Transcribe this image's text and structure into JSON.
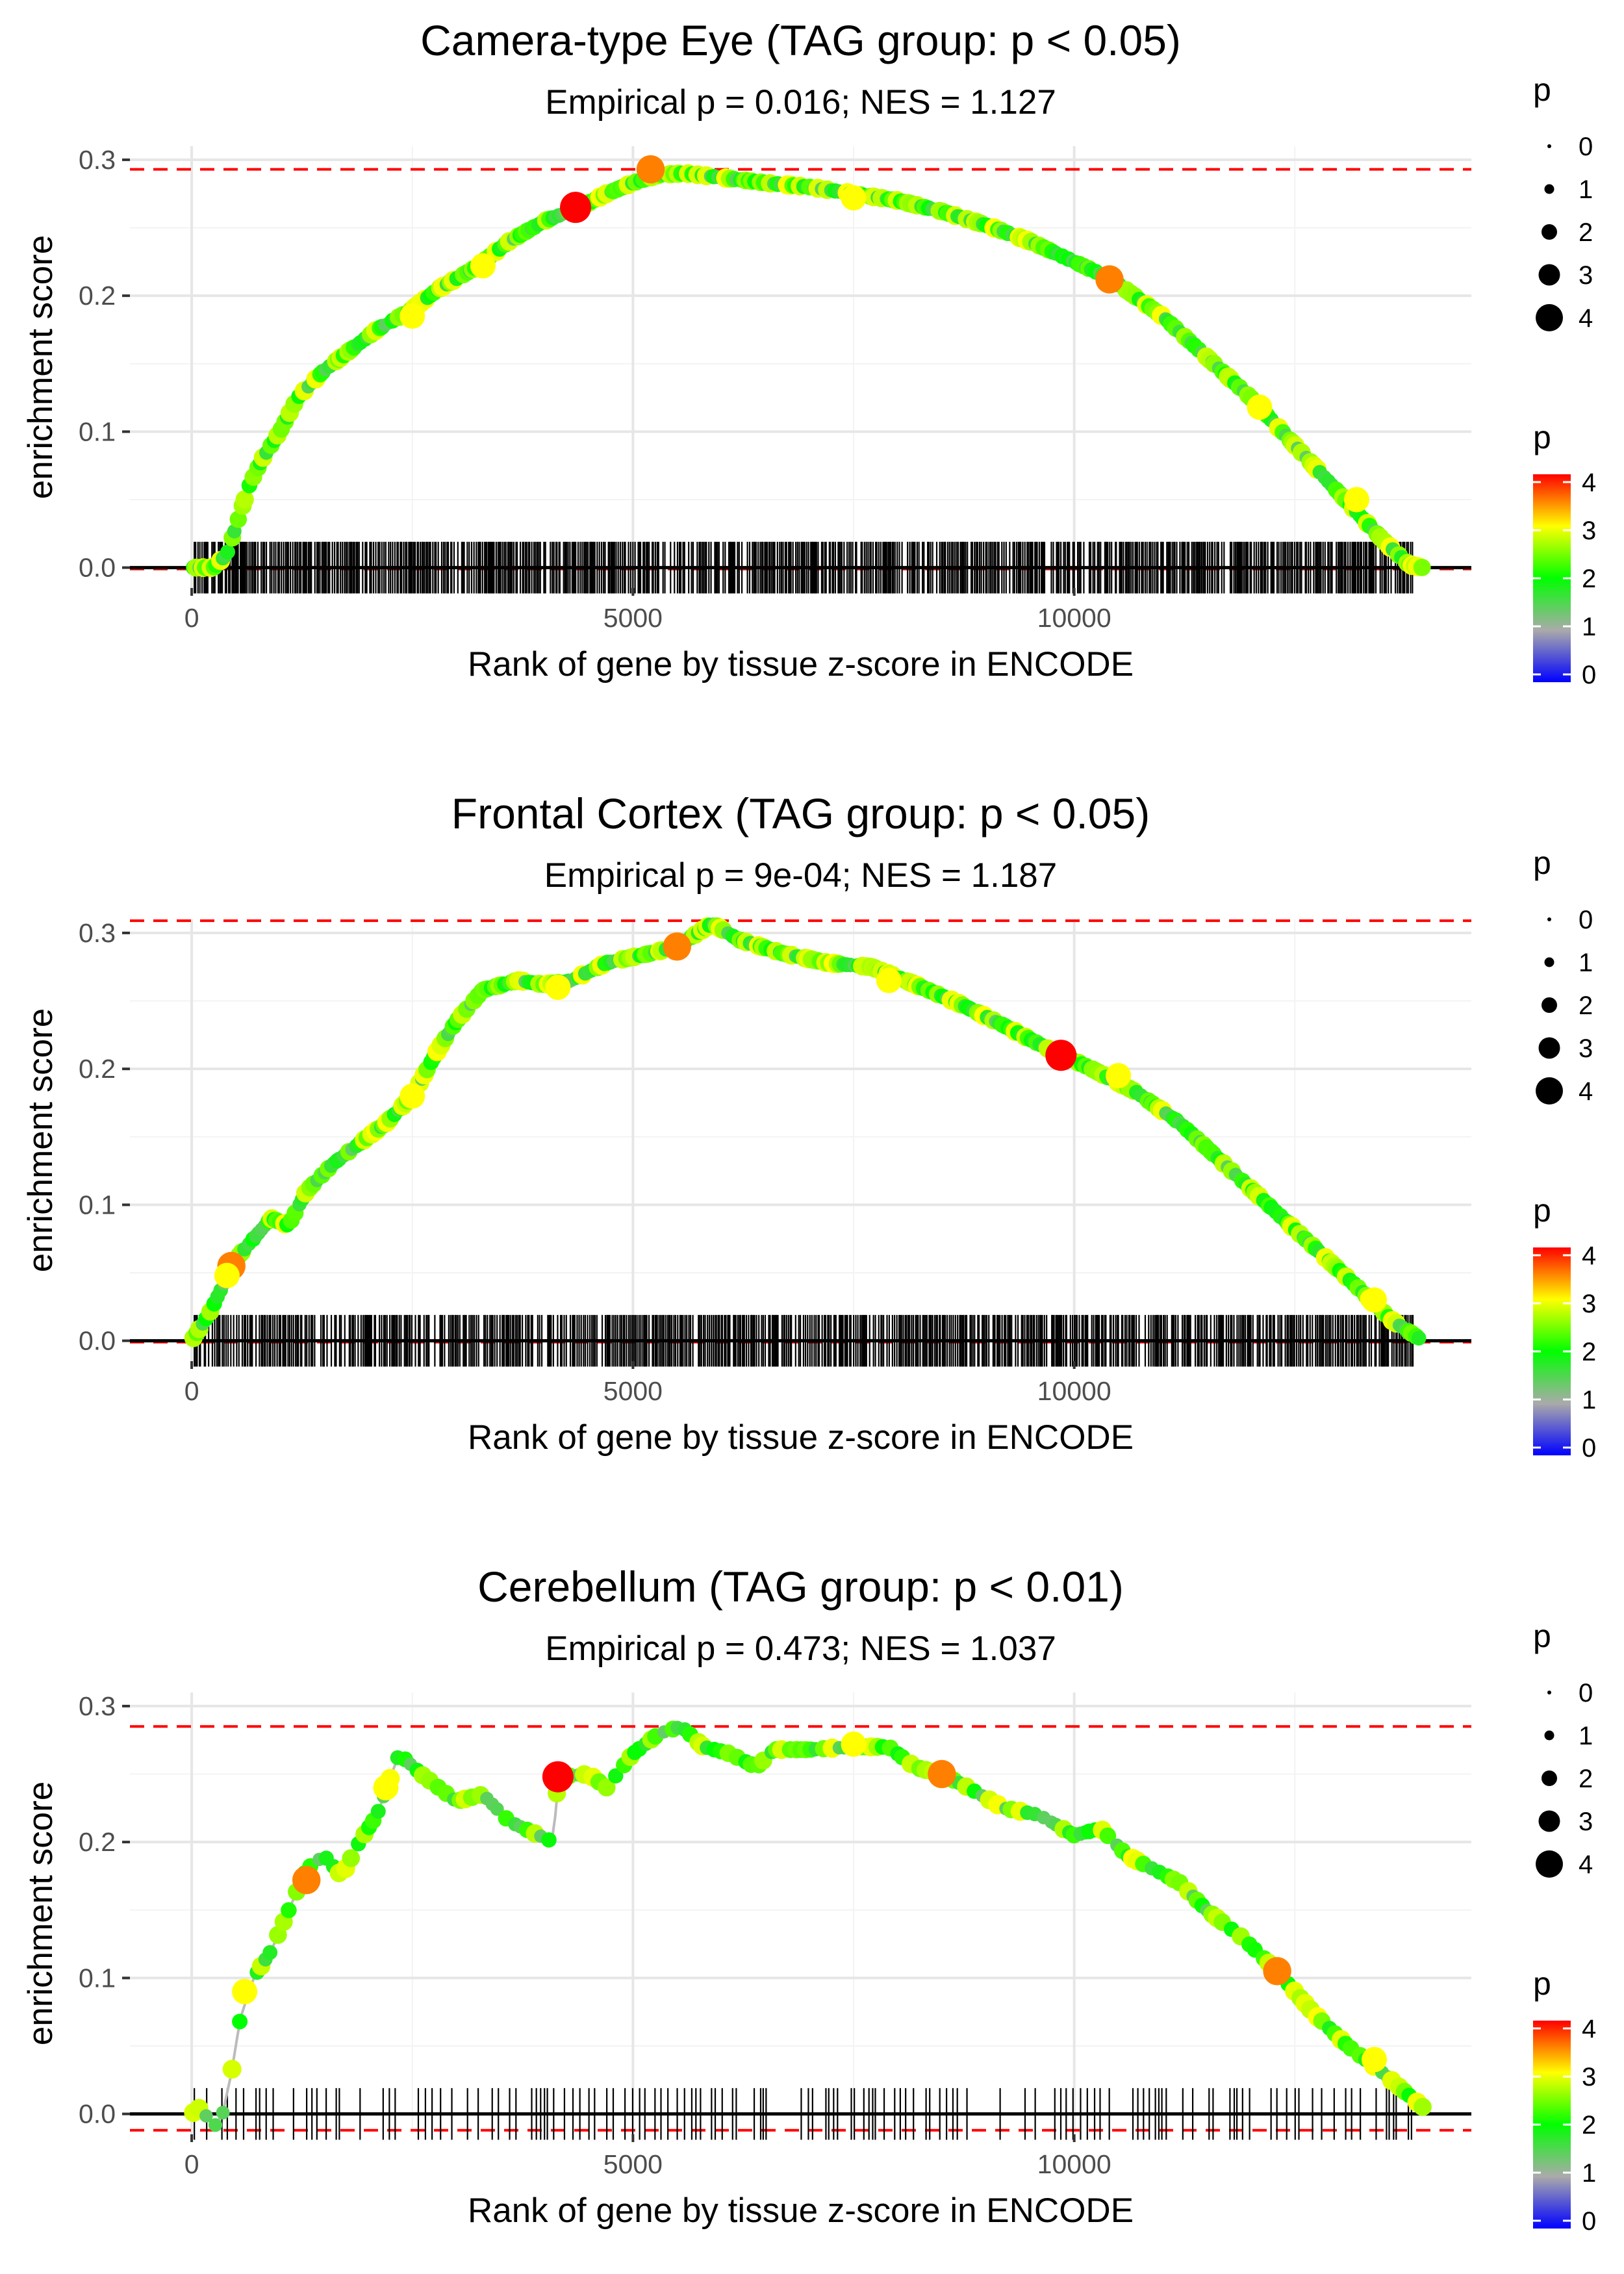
{
  "chart_data": [
    {
      "type": "scatter",
      "title": "Camera-type Eye (TAG group: p < 0.05)",
      "subtitle": "Empirical p = 0.016; NES = 1.127",
      "xlabel": "Rank of gene by tissue z-score in ENCODE",
      "ylabel": "enrichment score",
      "xlim": [
        -700,
        14500
      ],
      "ylim": [
        -0.015,
        0.31
      ],
      "x_ticks": [
        0,
        5000,
        10000
      ],
      "x_tick_labels": [
        "0",
        "5000",
        "10000"
      ],
      "y_ticks": [
        0.0,
        0.1,
        0.2,
        0.3
      ],
      "y_tick_labels": [
        "0.0",
        "0.1",
        "0.2",
        "0.3"
      ],
      "max_es_line": 0.293,
      "min_es_line": -0.001,
      "n_genes": 13950,
      "density": "dense",
      "curve_knots": [
        [
          0,
          0
        ],
        [
          250,
          0
        ],
        [
          400,
          0.01
        ],
        [
          500,
          0.03
        ],
        [
          650,
          0.06
        ],
        [
          800,
          0.08
        ],
        [
          1000,
          0.1
        ],
        [
          1200,
          0.125
        ],
        [
          1500,
          0.145
        ],
        [
          1800,
          0.16
        ],
        [
          2100,
          0.175
        ],
        [
          2500,
          0.19
        ],
        [
          2800,
          0.205
        ],
        [
          3200,
          0.22
        ],
        [
          3600,
          0.24
        ],
        [
          4000,
          0.255
        ],
        [
          4400,
          0.265
        ],
        [
          4700,
          0.275
        ],
        [
          5000,
          0.283
        ],
        [
          5300,
          0.289
        ],
        [
          5600,
          0.29
        ],
        [
          6000,
          0.287
        ],
        [
          6500,
          0.283
        ],
        [
          7000,
          0.28
        ],
        [
          7500,
          0.275
        ],
        [
          8000,
          0.27
        ],
        [
          8500,
          0.262
        ],
        [
          9000,
          0.252
        ],
        [
          9500,
          0.24
        ],
        [
          10000,
          0.225
        ],
        [
          10400,
          0.213
        ],
        [
          11000,
          0.185
        ],
        [
          11500,
          0.155
        ],
        [
          12000,
          0.125
        ],
        [
          12500,
          0.09
        ],
        [
          13000,
          0.055
        ],
        [
          13500,
          0.02
        ],
        [
          13800,
          0.002
        ],
        [
          13950,
          0.0
        ]
      ],
      "highlight_points": [
        {
          "x": 4350,
          "y": 0.265,
          "p": 4
        },
        {
          "x": 5200,
          "y": 0.293,
          "p": 3.5
        },
        {
          "x": 10400,
          "y": 0.212,
          "p": 3.5
        },
        {
          "x": 2500,
          "y": 0.185,
          "p": 3
        },
        {
          "x": 3300,
          "y": 0.222,
          "p": 3
        },
        {
          "x": 7500,
          "y": 0.272,
          "p": 3
        },
        {
          "x": 12100,
          "y": 0.118,
          "p": 3
        },
        {
          "x": 13200,
          "y": 0.05,
          "p": 3
        }
      ],
      "size_legend": {
        "title": "p",
        "labels": [
          "0",
          "1",
          "2",
          "3",
          "4"
        ]
      },
      "color_legend": {
        "title": "p",
        "labels": [
          "4",
          "3",
          "2",
          "1",
          "0"
        ],
        "colors": [
          "#0000ff",
          "#aaaaaa",
          "#00ff00",
          "#ffff00",
          "#ff0000"
        ]
      }
    },
    {
      "type": "scatter",
      "title": "Frontal Cortex (TAG group: p < 0.05)",
      "subtitle": "Empirical p = 9e-04; NES = 1.187",
      "xlabel": "Rank of gene by tissue z-score in ENCODE",
      "ylabel": "enrichment score",
      "xlim": [
        -700,
        14500
      ],
      "ylim": [
        -0.015,
        0.31
      ],
      "x_ticks": [
        0,
        5000,
        10000
      ],
      "x_tick_labels": [
        "0",
        "5000",
        "10000"
      ],
      "y_ticks": [
        0.0,
        0.1,
        0.2,
        0.3
      ],
      "y_tick_labels": [
        "0.0",
        "0.1",
        "0.2",
        "0.3"
      ],
      "max_es_line": 0.309,
      "min_es_line": -0.001,
      "n_genes": 13950,
      "density": "dense",
      "curve_knots": [
        [
          0,
          0
        ],
        [
          200,
          0.02
        ],
        [
          350,
          0.04
        ],
        [
          500,
          0.06
        ],
        [
          700,
          0.075
        ],
        [
          900,
          0.09
        ],
        [
          1100,
          0.085
        ],
        [
          1300,
          0.11
        ],
        [
          1600,
          0.13
        ],
        [
          1900,
          0.145
        ],
        [
          2200,
          0.16
        ],
        [
          2500,
          0.18
        ],
        [
          2800,
          0.215
        ],
        [
          3000,
          0.235
        ],
        [
          3300,
          0.258
        ],
        [
          3700,
          0.265
        ],
        [
          4000,
          0.262
        ],
        [
          4300,
          0.265
        ],
        [
          4700,
          0.278
        ],
        [
          5200,
          0.285
        ],
        [
          5500,
          0.29
        ],
        [
          5900,
          0.307
        ],
        [
          6200,
          0.295
        ],
        [
          6700,
          0.285
        ],
        [
          7200,
          0.278
        ],
        [
          7700,
          0.275
        ],
        [
          8200,
          0.262
        ],
        [
          8700,
          0.248
        ],
        [
          9200,
          0.232
        ],
        [
          9700,
          0.215
        ],
        [
          10200,
          0.2
        ],
        [
          10700,
          0.183
        ],
        [
          11200,
          0.16
        ],
        [
          11700,
          0.13
        ],
        [
          12200,
          0.1
        ],
        [
          12700,
          0.07
        ],
        [
          13200,
          0.04
        ],
        [
          13600,
          0.015
        ],
        [
          13950,
          0.0
        ]
      ],
      "highlight_points": [
        {
          "x": 9850,
          "y": 0.21,
          "p": 4
        },
        {
          "x": 5500,
          "y": 0.29,
          "p": 3.5
        },
        {
          "x": 450,
          "y": 0.055,
          "p": 3.5
        },
        {
          "x": 400,
          "y": 0.048,
          "p": 3
        },
        {
          "x": 4150,
          "y": 0.26,
          "p": 3
        },
        {
          "x": 2500,
          "y": 0.18,
          "p": 3
        },
        {
          "x": 7900,
          "y": 0.265,
          "p": 3
        },
        {
          "x": 10500,
          "y": 0.195,
          "p": 3
        },
        {
          "x": 13400,
          "y": 0.03,
          "p": 3
        }
      ],
      "size_legend": {
        "title": "p",
        "labels": [
          "0",
          "1",
          "2",
          "3",
          "4"
        ]
      },
      "color_legend": {
        "title": "p",
        "labels": [
          "4",
          "3",
          "2",
          "1",
          "0"
        ],
        "colors": [
          "#0000ff",
          "#aaaaaa",
          "#00ff00",
          "#ffff00",
          "#ff0000"
        ]
      }
    },
    {
      "type": "scatter",
      "title": "Cerebellum (TAG group: p < 0.01)",
      "subtitle": "Empirical p = 0.473; NES = 1.037",
      "xlabel": "Rank of gene by tissue z-score in ENCODE",
      "ylabel": "enrichment score",
      "xlim": [
        -700,
        14500
      ],
      "ylim": [
        -0.015,
        0.31
      ],
      "x_ticks": [
        0,
        5000,
        10000
      ],
      "x_tick_labels": [
        "0",
        "5000",
        "10000"
      ],
      "y_ticks": [
        0.0,
        0.1,
        0.2,
        0.3
      ],
      "y_tick_labels": [
        "0.0",
        "0.1",
        "0.2",
        "0.3"
      ],
      "max_es_line": 0.285,
      "min_es_line": -0.012,
      "n_genes": 13950,
      "density": "sparse",
      "curve_knots": [
        [
          0,
          0
        ],
        [
          100,
          0.005
        ],
        [
          250,
          -0.01
        ],
        [
          350,
          0
        ],
        [
          450,
          0.03
        ],
        [
          550,
          0.07
        ],
        [
          700,
          0.1
        ],
        [
          900,
          0.12
        ],
        [
          1100,
          0.15
        ],
        [
          1300,
          0.18
        ],
        [
          1500,
          0.19
        ],
        [
          1700,
          0.175
        ],
        [
          1900,
          0.2
        ],
        [
          2100,
          0.22
        ],
        [
          2350,
          0.265
        ],
        [
          2600,
          0.25
        ],
        [
          3000,
          0.23
        ],
        [
          3300,
          0.235
        ],
        [
          3600,
          0.215
        ],
        [
          4100,
          0.2
        ],
        [
          4150,
          0.248
        ],
        [
          4500,
          0.25
        ],
        [
          4700,
          0.24
        ],
        [
          5000,
          0.265
        ],
        [
          5300,
          0.28
        ],
        [
          5550,
          0.285
        ],
        [
          5800,
          0.27
        ],
        [
          6100,
          0.265
        ],
        [
          6400,
          0.255
        ],
        [
          6600,
          0.268
        ],
        [
          7000,
          0.268
        ],
        [
          7500,
          0.27
        ],
        [
          7900,
          0.27
        ],
        [
          8200,
          0.255
        ],
        [
          8500,
          0.25
        ],
        [
          8800,
          0.24
        ],
        [
          9200,
          0.225
        ],
        [
          9600,
          0.22
        ],
        [
          10000,
          0.205
        ],
        [
          10300,
          0.21
        ],
        [
          10600,
          0.19
        ],
        [
          10900,
          0.18
        ],
        [
          11200,
          0.17
        ],
        [
          11500,
          0.15
        ],
        [
          11900,
          0.13
        ],
        [
          12300,
          0.105
        ],
        [
          12700,
          0.075
        ],
        [
          13100,
          0.05
        ],
        [
          13500,
          0.03
        ],
        [
          13950,
          0.005
        ]
      ],
      "highlight_points": [
        {
          "x": 4150,
          "y": 0.248,
          "p": 4
        },
        {
          "x": 8500,
          "y": 0.25,
          "p": 3.5
        },
        {
          "x": 1300,
          "y": 0.172,
          "p": 3.5
        },
        {
          "x": 12300,
          "y": 0.105,
          "p": 3.5
        },
        {
          "x": 2200,
          "y": 0.24,
          "p": 3
        },
        {
          "x": 7500,
          "y": 0.272,
          "p": 3
        },
        {
          "x": 600,
          "y": 0.09,
          "p": 3
        },
        {
          "x": 13400,
          "y": 0.04,
          "p": 3
        }
      ],
      "size_legend": {
        "title": "p",
        "labels": [
          "0",
          "1",
          "2",
          "3",
          "4"
        ]
      },
      "color_legend": {
        "title": "p",
        "labels": [
          "4",
          "3",
          "2",
          "1",
          "0"
        ],
        "colors": [
          "#0000ff",
          "#aaaaaa",
          "#00ff00",
          "#ffff00",
          "#ff0000"
        ]
      }
    }
  ]
}
